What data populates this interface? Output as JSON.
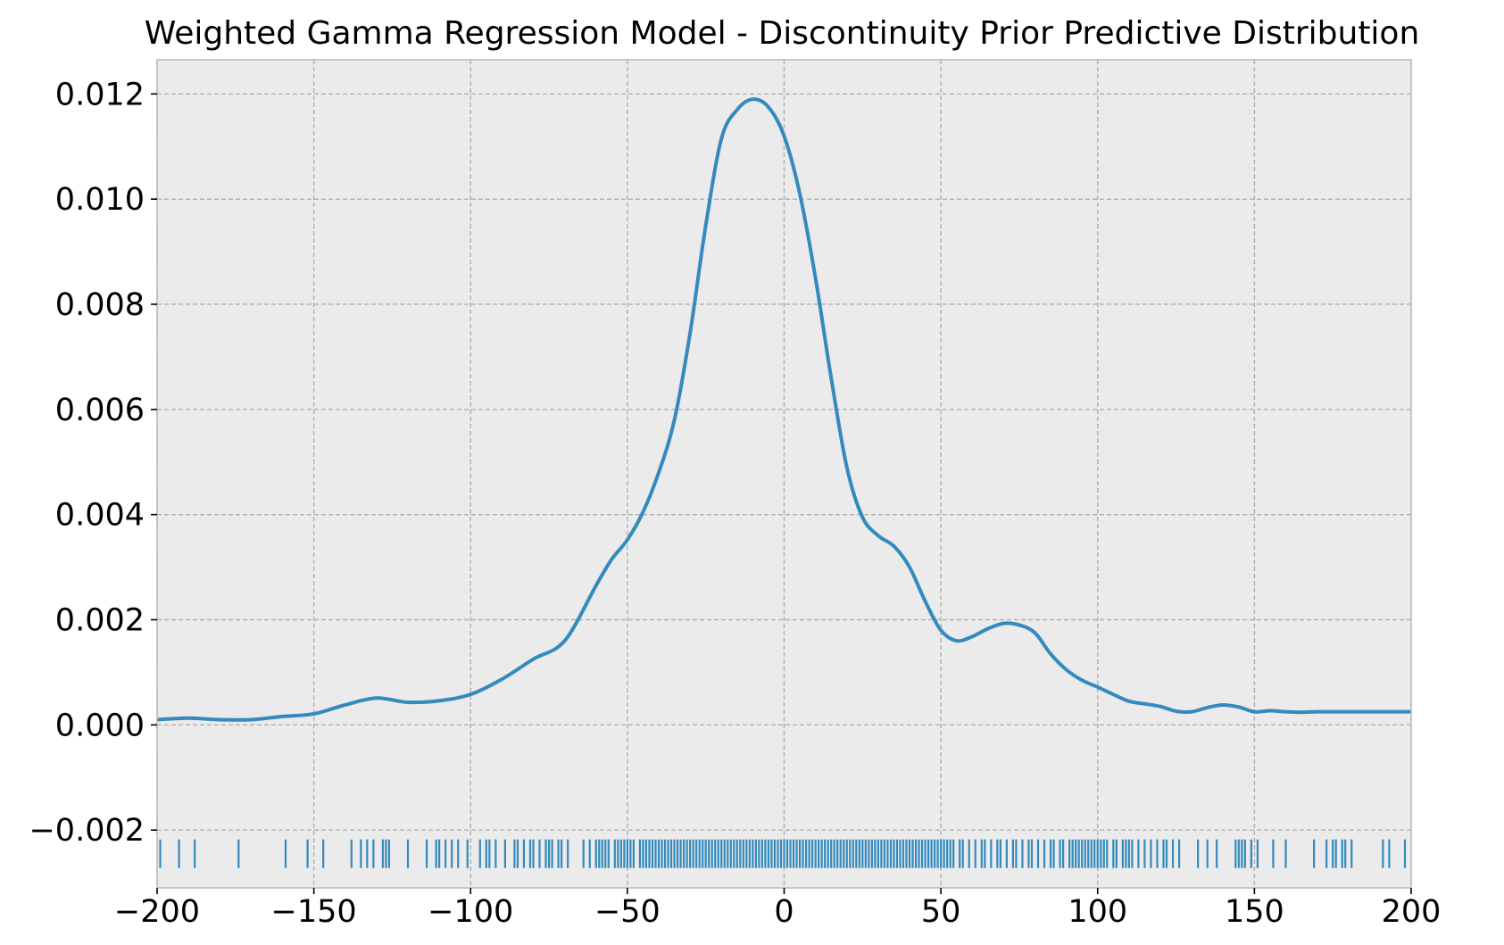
{
  "chart_data": {
    "type": "line",
    "title": "Weighted Gamma Regression Model - Discontinuity Prior Predictive Distribution",
    "xlabel": "",
    "ylabel": "",
    "xlim": [
      -200,
      200
    ],
    "ylim": [
      -0.0031,
      0.01265
    ],
    "grid": true,
    "xticks": [
      -200,
      -150,
      -100,
      -50,
      0,
      50,
      100,
      150,
      200
    ],
    "xtick_labels": [
      "−200",
      "−150",
      "−100",
      "−50",
      "0",
      "50",
      "100",
      "150",
      "200"
    ],
    "yticks": [
      -0.002,
      0,
      0.002,
      0.004,
      0.006,
      0.008,
      0.01,
      0.012
    ],
    "ytick_labels": [
      "−0.002",
      "0.000",
      "0.002",
      "0.004",
      "0.006",
      "0.008",
      "0.010",
      "0.012"
    ],
    "series": [
      {
        "x": [
          -200,
          -190,
          -180,
          -170,
          -160,
          -150,
          -140,
          -130,
          -120,
          -110,
          -100,
          -90,
          -80,
          -70,
          -60,
          -55,
          -50,
          -45,
          -40,
          -35,
          -30,
          -25,
          -20,
          -15,
          -10,
          -5,
          0,
          5,
          10,
          15,
          20,
          25,
          30,
          35,
          40,
          45,
          50,
          55,
          60,
          65,
          70,
          75,
          80,
          85,
          90,
          95,
          100,
          105,
          110,
          115,
          120,
          125,
          130,
          135,
          140,
          145,
          150,
          155,
          160,
          165,
          170,
          175,
          180,
          185,
          190,
          195,
          200
        ],
        "y": [
          0.0001,
          0.00013,
          0.0001,
          0.0001,
          0.00016,
          0.00021,
          0.00038,
          0.00051,
          0.00043,
          0.00046,
          0.00058,
          0.00087,
          0.00125,
          0.0016,
          0.00265,
          0.00315,
          0.00352,
          0.00405,
          0.0048,
          0.0058,
          0.00745,
          0.0095,
          0.01115,
          0.0117,
          0.0119,
          0.01175,
          0.0112,
          0.0101,
          0.0085,
          0.0066,
          0.0049,
          0.00395,
          0.0036,
          0.0034,
          0.003,
          0.00235,
          0.0018,
          0.0016,
          0.00168,
          0.00183,
          0.00193,
          0.0019,
          0.00175,
          0.00135,
          0.00105,
          0.00085,
          0.00072,
          0.00058,
          0.00045,
          0.0004,
          0.00035,
          0.00026,
          0.00025,
          0.00033,
          0.00038,
          0.00034,
          0.00025,
          0.00027,
          0.00025,
          0.00024,
          0.00025,
          0.00025,
          0.00025,
          0.00025,
          0.00025,
          0.00025,
          0.00025
        ]
      }
    ],
    "rug": {
      "y": -0.00245,
      "x": [
        -199,
        -193,
        -188,
        -174,
        -159,
        -152,
        -147,
        -138,
        -135,
        -133,
        -131,
        -128,
        -127,
        -126,
        -120,
        -114,
        -111,
        -110,
        -108,
        -106,
        -104,
        -101,
        -97,
        -95,
        -94,
        -92,
        -89,
        -86,
        -85,
        -83,
        -81,
        -80,
        -78,
        -76,
        -75,
        -74,
        -72,
        -71,
        -69,
        -64,
        -62,
        -60,
        -59,
        -58,
        -57,
        -56,
        -54,
        -53,
        -52,
        -51,
        -50,
        -49,
        -48,
        -46,
        -45,
        -44,
        -43,
        -42,
        -41,
        -40,
        -39,
        -38,
        -37,
        -36,
        -35,
        -34,
        -33,
        -32,
        -31,
        -30,
        -29,
        -28,
        -27,
        -26,
        -25,
        -24,
        -23,
        -22,
        -21,
        -20,
        -19,
        -18,
        -17,
        -16,
        -15,
        -14,
        -13,
        -12,
        -11,
        -10,
        -9,
        -8,
        -7,
        -6,
        -5,
        -4,
        -3,
        -2,
        -1,
        0,
        1,
        2,
        3,
        4,
        5,
        6,
        7,
        8,
        9,
        10,
        11,
        12,
        13,
        14,
        15,
        16,
        17,
        18,
        19,
        20,
        21,
        22,
        23,
        24,
        25,
        26,
        27,
        28,
        29,
        30,
        31,
        32,
        33,
        34,
        35,
        36,
        37,
        38,
        39,
        40,
        41,
        42,
        43,
        44,
        45,
        46,
        47,
        48,
        49,
        50,
        51,
        52,
        53,
        54,
        56,
        57,
        59,
        61,
        63,
        64,
        66,
        68,
        69,
        71,
        73,
        74,
        76,
        78,
        79,
        81,
        83,
        85,
        86,
        88,
        89,
        91,
        92,
        93,
        94,
        95,
        96,
        97,
        98,
        99,
        100,
        101,
        102,
        103,
        105,
        106,
        108,
        109,
        110,
        111,
        113,
        115,
        117,
        119,
        121,
        122,
        124,
        126,
        132,
        135,
        138,
        144,
        145,
        146,
        147,
        149,
        151,
        156,
        160,
        169,
        173,
        175,
        176,
        178,
        179,
        181,
        191,
        193,
        198
      ]
    },
    "colors": {
      "line": "#348abd",
      "rug": "#348abd",
      "plot_background": "#ebebeb",
      "grid": "#b0b0b0",
      "frame": "#bcbcbc"
    }
  }
}
